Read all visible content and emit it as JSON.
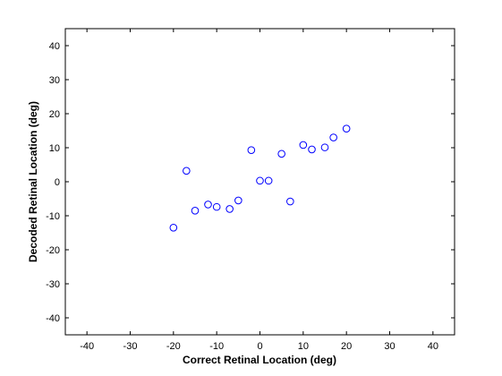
{
  "chart_data": {
    "type": "scatter",
    "title": "",
    "xlabel": "Correct Retinal Location (deg)",
    "ylabel": "Decoded Retinal Location (deg)",
    "xlim": [
      -45,
      45
    ],
    "ylim": [
      -45,
      45
    ],
    "xticks": [
      -40,
      -30,
      -20,
      -10,
      0,
      10,
      20,
      30,
      40
    ],
    "yticks": [
      -40,
      -30,
      -20,
      -10,
      0,
      10,
      20,
      30,
      40
    ],
    "grid": false,
    "legend": "none",
    "marker": "open-circle",
    "marker_color": "#0000ff",
    "series": [
      {
        "x": [
          -20,
          -17,
          -15,
          -12,
          -10,
          -7,
          -5,
          -2,
          0,
          2,
          5,
          7,
          10,
          12,
          15,
          17,
          20
        ],
        "y": [
          -13.5,
          3.2,
          -8.5,
          -6.7,
          -7.4,
          -8,
          -5.5,
          9.3,
          0.3,
          0.3,
          8.2,
          -5.8,
          10.8,
          9.5,
          10.1,
          13,
          15.6
        ]
      }
    ]
  }
}
